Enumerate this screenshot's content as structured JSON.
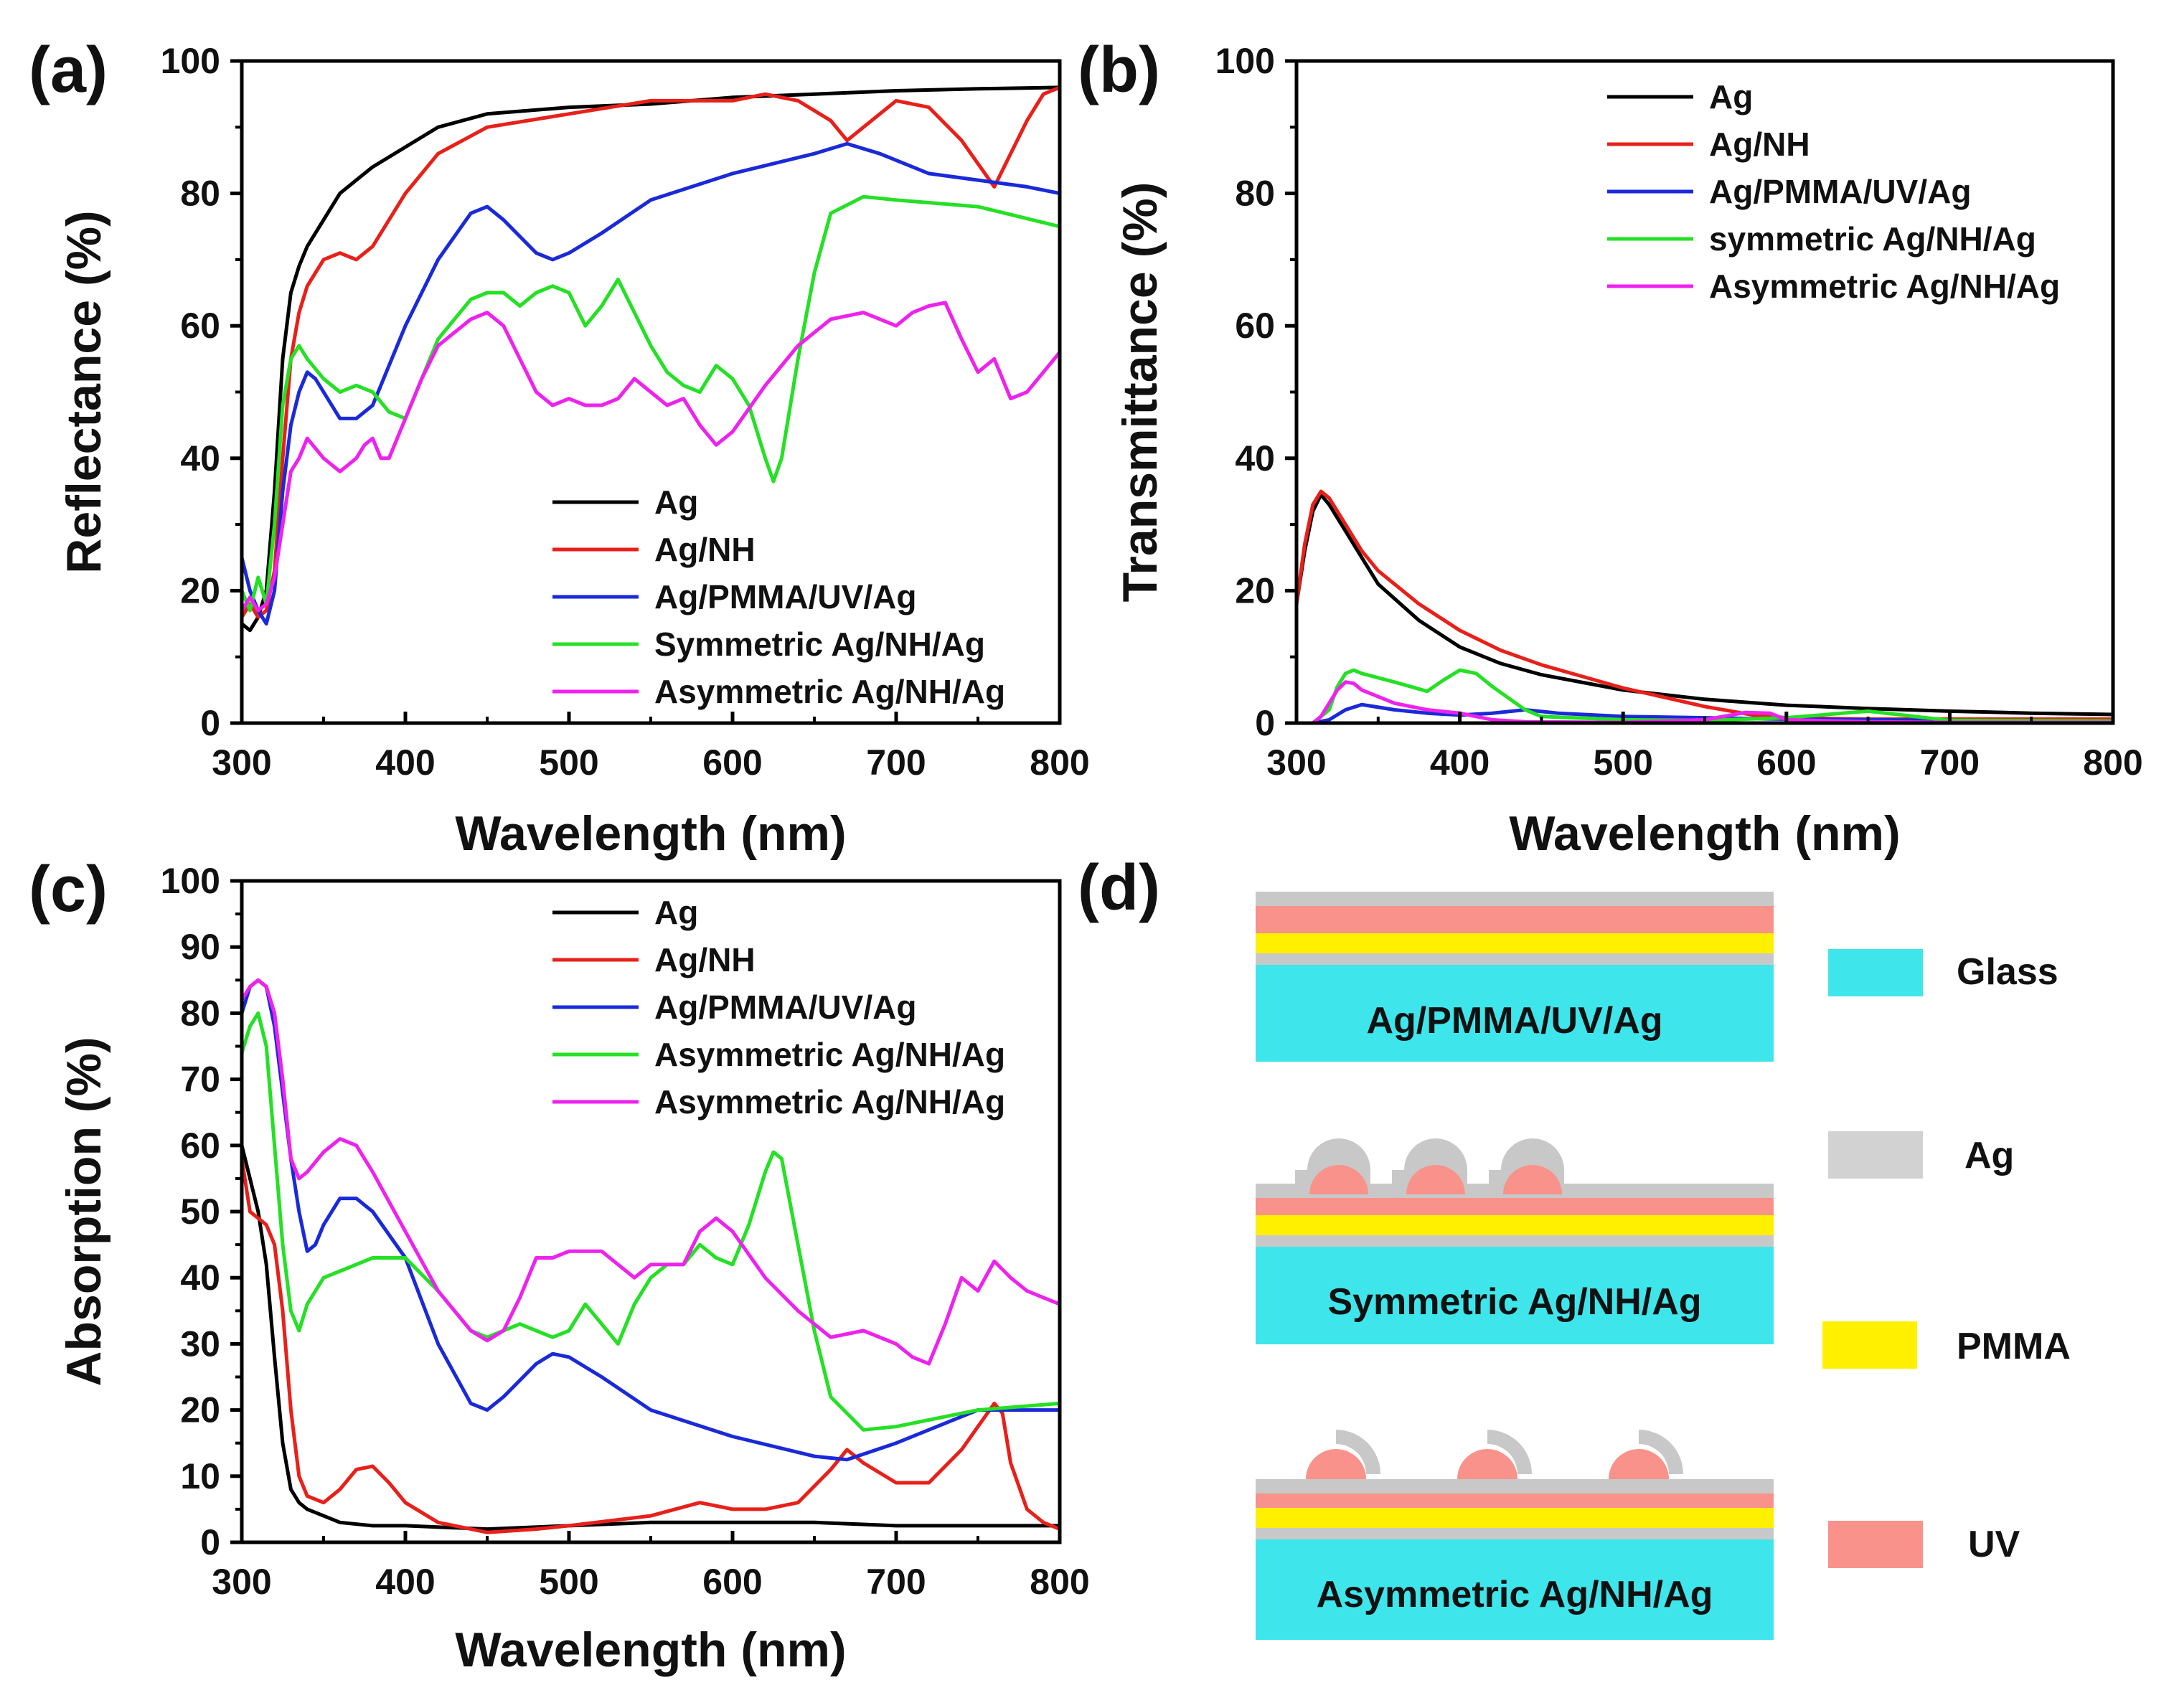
{
  "chart_data": [
    {
      "panel_label": "(a)",
      "type": "line",
      "xlabel": "Wavelength (nm)",
      "ylabel": "Reflectance (%)",
      "xlim": [
        300,
        800
      ],
      "ylim": [
        0,
        100
      ],
      "xticks": [
        "300",
        "400",
        "500",
        "600",
        "700",
        "800"
      ],
      "yticks": [
        "0",
        "20",
        "40",
        "60",
        "80",
        "100"
      ],
      "legend_position": "lower-right",
      "series": [
        {
          "name": "Ag",
          "color": "#000000",
          "x": [
            300,
            305,
            310,
            315,
            320,
            325,
            330,
            335,
            340,
            350,
            360,
            370,
            380,
            400,
            420,
            450,
            500,
            550,
            600,
            650,
            700,
            750,
            800
          ],
          "y": [
            15,
            14,
            16,
            20,
            35,
            55,
            65,
            69,
            72,
            76,
            80,
            82,
            84,
            87,
            90,
            92,
            93,
            93.5,
            94.5,
            95,
            95.5,
            95.8,
            96
          ]
        },
        {
          "name": "Ag/NH",
          "color": "#e8201a",
          "x": [
            300,
            305,
            310,
            315,
            320,
            325,
            330,
            335,
            340,
            350,
            360,
            370,
            380,
            400,
            420,
            450,
            500,
            550,
            600,
            620,
            640,
            660,
            670,
            680,
            700,
            720,
            740,
            760,
            770,
            780,
            790,
            800
          ],
          "y": [
            16,
            18,
            16,
            17,
            23,
            40,
            55,
            62,
            66,
            70,
            71,
            70,
            72,
            80,
            86,
            90,
            92,
            94,
            94,
            95,
            94,
            91,
            88,
            90,
            94,
            93,
            88,
            81,
            86,
            91,
            95,
            96
          ]
        },
        {
          "name": "Ag/PMMA/UV/Ag",
          "color": "#1a2ad8",
          "x": [
            300,
            305,
            310,
            315,
            320,
            325,
            330,
            335,
            340,
            345,
            350,
            360,
            370,
            380,
            400,
            420,
            440,
            450,
            460,
            480,
            490,
            500,
            520,
            550,
            600,
            650,
            670,
            690,
            720,
            750,
            780,
            800
          ],
          "y": [
            25,
            20,
            17,
            15,
            20,
            35,
            45,
            50,
            53,
            52,
            50,
            46,
            46,
            48,
            60,
            70,
            77,
            78,
            76,
            71,
            70,
            71,
            74,
            79,
            83,
            86,
            87.5,
            86,
            83,
            82,
            81,
            80
          ]
        },
        {
          "name": "Symmetric Ag/NH/Ag",
          "color": "#25e025",
          "x": [
            300,
            305,
            310,
            315,
            320,
            325,
            330,
            335,
            340,
            350,
            360,
            370,
            380,
            390,
            400,
            410,
            420,
            440,
            450,
            460,
            470,
            480,
            490,
            500,
            510,
            520,
            530,
            540,
            550,
            560,
            570,
            580,
            590,
            600,
            610,
            620,
            625,
            630,
            640,
            650,
            660,
            680,
            700,
            750,
            800
          ],
          "y": [
            20,
            17,
            22,
            18,
            30,
            48,
            55,
            57,
            55,
            52,
            50,
            51,
            50,
            47,
            46,
            52,
            58,
            64,
            65,
            65,
            63,
            65,
            66,
            65,
            60,
            63,
            67,
            62,
            57,
            53,
            51,
            50,
            54,
            52,
            48,
            40,
            36.5,
            40,
            55,
            68,
            77,
            79.5,
            79,
            78,
            75
          ]
        },
        {
          "name": "Asymmetric Ag/NH/Ag",
          "color": "#ee22ee",
          "x": [
            300,
            305,
            310,
            315,
            320,
            325,
            330,
            335,
            340,
            350,
            360,
            370,
            375,
            380,
            385,
            390,
            400,
            410,
            420,
            440,
            450,
            460,
            470,
            480,
            490,
            500,
            510,
            520,
            530,
            540,
            550,
            560,
            570,
            580,
            590,
            600,
            620,
            640,
            660,
            680,
            700,
            710,
            720,
            730,
            740,
            750,
            760,
            770,
            780,
            790,
            800
          ],
          "y": [
            17,
            19,
            17,
            18,
            22,
            30,
            38,
            40,
            43,
            40,
            38,
            40,
            42,
            43,
            40,
            40,
            46,
            52,
            57,
            61,
            62,
            60,
            55,
            50,
            48,
            49,
            48,
            48,
            49,
            52,
            50,
            48,
            49,
            45,
            42,
            44,
            51,
            57,
            61,
            62,
            60,
            62,
            63,
            63.5,
            58,
            53,
            55,
            49,
            50,
            53,
            56
          ]
        }
      ]
    },
    {
      "panel_label": "(b)",
      "type": "line",
      "xlabel": "Wavelength (nm)",
      "ylabel": "Transmittance (%)",
      "xlim": [
        300,
        800
      ],
      "ylim": [
        0,
        100
      ],
      "xticks": [
        "300",
        "400",
        "500",
        "600",
        "700",
        "800"
      ],
      "yticks": [
        "0",
        "20",
        "40",
        "60",
        "80",
        "100"
      ],
      "legend_position": "top-right",
      "series": [
        {
          "name": "Ag",
          "color": "#000000",
          "x": [
            300,
            305,
            310,
            315,
            320,
            330,
            340,
            350,
            375,
            400,
            425,
            450,
            500,
            550,
            600,
            650,
            700,
            750,
            800
          ],
          "y": [
            18,
            26,
            32,
            34.5,
            33,
            29,
            25,
            21,
            15.5,
            11.5,
            9,
            7.3,
            5,
            3.6,
            2.7,
            2.2,
            1.8,
            1.5,
            1.3
          ]
        },
        {
          "name": "Ag/NH",
          "color": "#e8201a",
          "x": [
            300,
            305,
            310,
            315,
            320,
            330,
            340,
            350,
            375,
            400,
            425,
            450,
            500,
            550,
            580,
            600,
            650,
            700,
            750,
            800
          ],
          "y": [
            18,
            27,
            33,
            35,
            34,
            30,
            26,
            23,
            18,
            14,
            11,
            8.8,
            5.3,
            2.5,
            1.2,
            0.8,
            0.6,
            0.6,
            0.6,
            0.6
          ]
        },
        {
          "name": "Ag/PMMA/UV/Ag",
          "color": "#1a2ad8",
          "x": [
            300,
            310,
            320,
            330,
            340,
            360,
            380,
            400,
            420,
            440,
            460,
            500,
            550,
            600,
            700,
            800
          ],
          "y": [
            0,
            0,
            0.5,
            2,
            2.8,
            2,
            1.5,
            1.2,
            1.5,
            2,
            1.5,
            1,
            0.8,
            0.6,
            0.4,
            0.3
          ]
        },
        {
          "name": "symmetric Ag/NH/Ag",
          "color": "#25e025",
          "x": [
            300,
            310,
            320,
            325,
            330,
            335,
            340,
            360,
            380,
            390,
            400,
            410,
            420,
            440,
            450,
            500,
            550,
            600,
            650,
            700,
            800
          ],
          "y": [
            0,
            0,
            2,
            5.5,
            7.5,
            8,
            7.5,
            6.2,
            4.8,
            6.5,
            8,
            7.5,
            5.5,
            2,
            1,
            0.5,
            0.4,
            0.8,
            1.8,
            0.4,
            0.3
          ]
        },
        {
          "name": "Asymmetric Ag/NH/Ag",
          "color": "#ee22ee",
          "x": [
            300,
            310,
            315,
            320,
            325,
            330,
            335,
            340,
            360,
            380,
            400,
            420,
            440,
            500,
            550,
            575,
            590,
            600,
            650,
            700,
            800
          ],
          "y": [
            0,
            0,
            1,
            3,
            5,
            6.2,
            6,
            5,
            3,
            2,
            1.5,
            0.5,
            0.2,
            0.1,
            0.5,
            1.6,
            1.5,
            0.5,
            0.2,
            0.1,
            0.1
          ]
        }
      ]
    },
    {
      "panel_label": "(c)",
      "type": "line",
      "xlabel": "Wavelength (nm)",
      "ylabel": "Absorption (%)",
      "xlim": [
        300,
        800
      ],
      "ylim": [
        0,
        100
      ],
      "xticks": [
        "300",
        "400",
        "500",
        "600",
        "700",
        "800"
      ],
      "yticks": [
        "0",
        "10",
        "20",
        "30",
        "40",
        "50",
        "60",
        "70",
        "80",
        "90",
        "100"
      ],
      "legend_position": "top-right",
      "series": [
        {
          "name": "Ag",
          "color": "#000000",
          "x": [
            300,
            305,
            310,
            315,
            320,
            325,
            330,
            335,
            340,
            350,
            360,
            380,
            400,
            450,
            500,
            550,
            600,
            650,
            700,
            750,
            800
          ],
          "y": [
            60,
            55,
            50,
            42,
            28,
            15,
            8,
            6,
            5,
            4,
            3,
            2.5,
            2.5,
            2,
            2.5,
            3,
            3,
            3,
            2.5,
            2.5,
            2.5
          ]
        },
        {
          "name": "Ag/NH",
          "color": "#e8201a",
          "x": [
            300,
            305,
            310,
            315,
            320,
            325,
            330,
            335,
            340,
            350,
            360,
            370,
            380,
            390,
            400,
            420,
            450,
            480,
            500,
            550,
            580,
            600,
            620,
            640,
            660,
            670,
            680,
            700,
            720,
            740,
            760,
            765,
            770,
            780,
            790,
            800
          ],
          "y": [
            58,
            50,
            49,
            48,
            45,
            35,
            20,
            10,
            7,
            6,
            8,
            11,
            11.5,
            9,
            6,
            3,
            1.5,
            2,
            2.5,
            4,
            6,
            5,
            5,
            6,
            11,
            14,
            12,
            9,
            9,
            14,
            21,
            19.5,
            12,
            5,
            3,
            2
          ]
        },
        {
          "name": "Ag/PMMA/UV/Ag",
          "color": "#1a2ad8",
          "x": [
            300,
            305,
            310,
            315,
            320,
            325,
            330,
            335,
            340,
            345,
            350,
            360,
            370,
            380,
            400,
            420,
            440,
            450,
            460,
            480,
            490,
            500,
            520,
            550,
            600,
            650,
            670,
            700,
            750,
            800
          ],
          "y": [
            80,
            84,
            85,
            84,
            78,
            68,
            58,
            50,
            44,
            45,
            48,
            52,
            52,
            50,
            43,
            30,
            21,
            20,
            22,
            27,
            28.5,
            28,
            25,
            20,
            16,
            13,
            12.5,
            15,
            20,
            20
          ]
        },
        {
          "name": "Asymmetric Ag/NH/Ag",
          "color": "#25e025",
          "x": [
            300,
            305,
            310,
            315,
            320,
            325,
            330,
            335,
            340,
            350,
            360,
            380,
            400,
            420,
            440,
            450,
            460,
            470,
            480,
            490,
            500,
            510,
            520,
            530,
            540,
            550,
            560,
            570,
            580,
            590,
            600,
            610,
            620,
            625,
            630,
            640,
            650,
            660,
            680,
            700,
            750,
            800
          ],
          "y": [
            74,
            78,
            80,
            75,
            60,
            45,
            35,
            32,
            36,
            40,
            41,
            43,
            43,
            38,
            32,
            31,
            32,
            33,
            32,
            31,
            32,
            36,
            33,
            30,
            36,
            40,
            42,
            42,
            45,
            43,
            42,
            48,
            56,
            59,
            58,
            45,
            32,
            22,
            17,
            17.5,
            20,
            21
          ]
        },
        {
          "name": "Asymmetric Ag/NH/Ag",
          "color": "#ee22ee",
          "x": [
            300,
            305,
            310,
            315,
            320,
            325,
            330,
            335,
            340,
            350,
            360,
            370,
            380,
            400,
            420,
            440,
            450,
            460,
            470,
            480,
            490,
            500,
            510,
            520,
            530,
            540,
            550,
            560,
            570,
            580,
            590,
            600,
            620,
            640,
            660,
            680,
            700,
            710,
            720,
            730,
            740,
            750,
            760,
            770,
            780,
            790,
            800
          ],
          "y": [
            82,
            84,
            85,
            84,
            80,
            70,
            58,
            55,
            56,
            59,
            61,
            60,
            56,
            47,
            38,
            32,
            30.5,
            32,
            37,
            43,
            43,
            44,
            44,
            44,
            42,
            40,
            42,
            42,
            42,
            47,
            49,
            47,
            40,
            35,
            31,
            32,
            30,
            28,
            27,
            33,
            40,
            38,
            42.5,
            40,
            38,
            37,
            36
          ]
        }
      ]
    }
  ],
  "panel_d": {
    "label": "(d)",
    "structures": [
      {
        "name": "Ag/PMMA/UV/Ag"
      },
      {
        "name": "Symmetric Ag/NH/Ag"
      },
      {
        "name": "Asymmetric Ag/NH/Ag"
      }
    ],
    "legend": [
      {
        "label": "Glass",
        "color": "#3ee6ec"
      },
      {
        "label": "Ag",
        "color": "#d2d2d2"
      },
      {
        "label": "PMMA",
        "color": "#fff000"
      },
      {
        "label": "UV",
        "color": "#f8928a"
      }
    ]
  }
}
